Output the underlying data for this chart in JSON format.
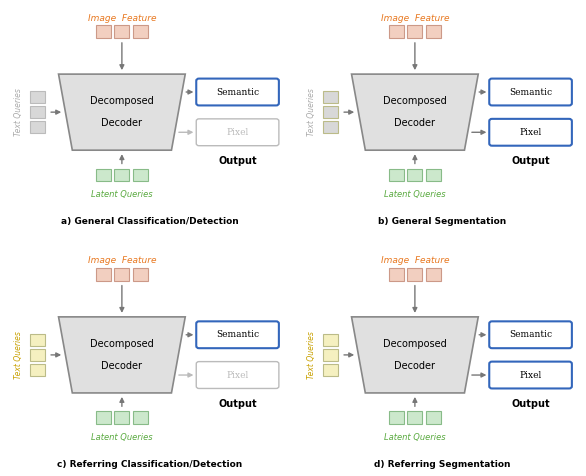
{
  "panels": [
    {
      "label": "a) General Classification/Detection",
      "col": 0,
      "row": 0,
      "text_query_color": "#d8d8d8",
      "text_query_label_color": "#aaaaaa",
      "img_feat_color": "#f2cfc0",
      "latent_color": "#cce8cc",
      "semantic_active": true,
      "pixel_active": false
    },
    {
      "label": "b) General Segmentation",
      "col": 1,
      "row": 0,
      "text_query_color": "#d8d8d8",
      "text_query_label_color": "#aaaaaa",
      "img_feat_color": "#f2cfc0",
      "latent_color": "#cce8cc",
      "semantic_active": true,
      "pixel_active": true
    },
    {
      "label": "c) Referring Classification/Detection",
      "col": 0,
      "row": 1,
      "text_query_color": "#f5f0c0",
      "text_query_label_color": "#c8a000",
      "img_feat_color": "#f2cfc0",
      "latent_color": "#cce8cc",
      "semantic_active": true,
      "pixel_active": false
    },
    {
      "label": "d) Referring Segmentation",
      "col": 1,
      "row": 1,
      "text_query_color": "#f5f0c0",
      "text_query_label_color": "#c8a000",
      "img_feat_color": "#f2cfc0",
      "latent_color": "#cce8cc",
      "semantic_active": true,
      "pixel_active": true
    }
  ],
  "orange_color": "#e87820",
  "green_color": "#5aaa40",
  "blue_border_color": "#3366bb",
  "decoder_fill": "#e0e0e0",
  "decoder_stroke": "#888888",
  "background": "#ffffff",
  "arrow_color": "#777777"
}
